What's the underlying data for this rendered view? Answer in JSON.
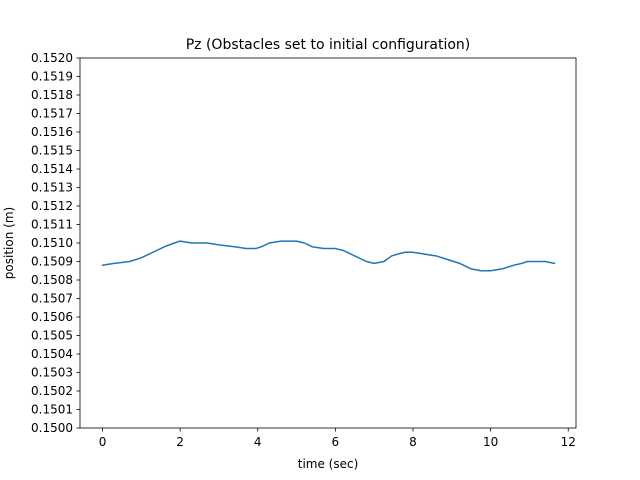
{
  "chart_data": {
    "type": "line",
    "title": "Pz (Obstacles set to initial configuration)",
    "xlabel": "time (sec)",
    "ylabel": "position (m)",
    "xlim": [
      -0.58,
      12.2
    ],
    "ylim": [
      0.15,
      0.152
    ],
    "xticks": [
      0,
      2,
      4,
      6,
      8,
      10,
      12
    ],
    "xtick_labels": [
      "0",
      "2",
      "4",
      "6",
      "8",
      "10",
      "12"
    ],
    "yticks": [
      0.15,
      0.1501,
      0.1502,
      0.1503,
      0.1504,
      0.1505,
      0.1506,
      0.1507,
      0.1508,
      0.1509,
      0.151,
      0.1511,
      0.1512,
      0.1513,
      0.1514,
      0.1515,
      0.1516,
      0.1517,
      0.1518,
      0.1519,
      0.152
    ],
    "ytick_labels": [
      "0.1500",
      "0.1501",
      "0.1502",
      "0.1503",
      "0.1504",
      "0.1505",
      "0.1506",
      "0.1507",
      "0.1508",
      "0.1509",
      "0.1510",
      "0.1511",
      "0.1512",
      "0.1513",
      "0.1514",
      "0.1515",
      "0.1516",
      "0.1517",
      "0.1518",
      "0.1519",
      "0.1520"
    ],
    "grid": false,
    "series": [
      {
        "color": "#1f77b4",
        "x": [
          0.0,
          0.3,
          0.7,
          1.0,
          1.3,
          1.6,
          1.85,
          2.0,
          2.3,
          2.7,
          3.0,
          3.4,
          3.7,
          3.95,
          4.1,
          4.3,
          4.6,
          4.8,
          5.0,
          5.2,
          5.4,
          5.7,
          6.0,
          6.2,
          6.5,
          6.8,
          7.0,
          7.25,
          7.45,
          7.6,
          7.8,
          8.0,
          8.3,
          8.6,
          8.9,
          9.2,
          9.5,
          9.75,
          10.0,
          10.3,
          10.6,
          10.8,
          10.95,
          11.2,
          11.4,
          11.65
        ],
        "y": [
          0.15088,
          0.15089,
          0.1509,
          0.15092,
          0.15095,
          0.15098,
          0.151,
          0.15101,
          0.151,
          0.151,
          0.15099,
          0.15098,
          0.15097,
          0.15097,
          0.15098,
          0.151,
          0.15101,
          0.15101,
          0.15101,
          0.151,
          0.15098,
          0.15097,
          0.15097,
          0.15096,
          0.15093,
          0.1509,
          0.15089,
          0.1509,
          0.15093,
          0.15094,
          0.15095,
          0.15095,
          0.15094,
          0.15093,
          0.15091,
          0.15089,
          0.15086,
          0.15085,
          0.15085,
          0.15086,
          0.15088,
          0.15089,
          0.1509,
          0.1509,
          0.1509,
          0.15089
        ]
      }
    ]
  }
}
